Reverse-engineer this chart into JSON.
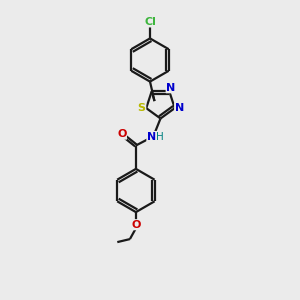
{
  "bg_color": "#ebebeb",
  "bond_color": "#1a1a1a",
  "cl_color": "#3db53d",
  "s_color": "#b8b800",
  "n_color": "#0000cc",
  "o_color": "#cc0000",
  "nh_color": "#008080",
  "line_width": 1.6,
  "figsize": [
    3.0,
    3.0
  ],
  "dpi": 100,
  "xlim": [
    0,
    6
  ],
  "ylim": [
    0,
    10
  ]
}
